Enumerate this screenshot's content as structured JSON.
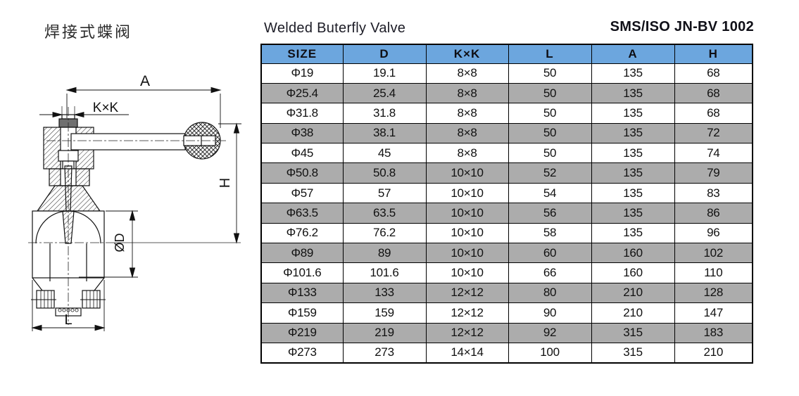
{
  "header": {
    "title_zh": "焊接式蝶阀",
    "title_en": "Welded Buterfly Valve",
    "spec_code": "SMS/ISO JN-BV 1002"
  },
  "drawing": {
    "labels": {
      "a": "A",
      "kxk": "K×K",
      "h": "H",
      "od": "ØD",
      "l": "L"
    }
  },
  "table": {
    "headers": [
      "SIZE",
      "D",
      "K×K",
      "L",
      "A",
      "H"
    ],
    "rows": [
      [
        "Φ19",
        "19.1",
        "8×8",
        "50",
        "135",
        "68"
      ],
      [
        "Φ25.4",
        "25.4",
        "8×8",
        "50",
        "135",
        "68"
      ],
      [
        "Φ31.8",
        "31.8",
        "8×8",
        "50",
        "135",
        "68"
      ],
      [
        "Φ38",
        "38.1",
        "8×8",
        "50",
        "135",
        "72"
      ],
      [
        "Φ45",
        "45",
        "8×8",
        "50",
        "135",
        "74"
      ],
      [
        "Φ50.8",
        "50.8",
        "10×10",
        "52",
        "135",
        "79"
      ],
      [
        "Φ57",
        "57",
        "10×10",
        "54",
        "135",
        "83"
      ],
      [
        "Φ63.5",
        "63.5",
        "10×10",
        "56",
        "135",
        "86"
      ],
      [
        "Φ76.2",
        "76.2",
        "10×10",
        "58",
        "135",
        "96"
      ],
      [
        "Φ89",
        "89",
        "10×10",
        "60",
        "160",
        "102"
      ],
      [
        "Φ101.6",
        "101.6",
        "10×10",
        "66",
        "160",
        "110"
      ],
      [
        "Φ133",
        "133",
        "12×12",
        "80",
        "210",
        "128"
      ],
      [
        "Φ159",
        "159",
        "12×12",
        "90",
        "210",
        "147"
      ],
      [
        "Φ219",
        "219",
        "12×12",
        "92",
        "315",
        "183"
      ],
      [
        "Φ273",
        "273",
        "14×14",
        "100",
        "315",
        "210"
      ]
    ],
    "colors": {
      "header_bg": "#6CA6DE",
      "alt_row_bg": "#ACACAC",
      "row_bg": "#FFFFFF",
      "border": "#000000"
    }
  }
}
